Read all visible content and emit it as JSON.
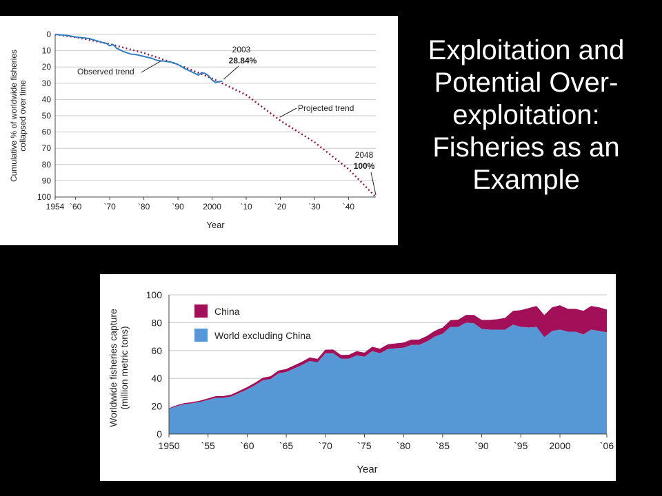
{
  "slide": {
    "title": "Exploitation and Potential Over-exploitation: Fisheries as an Example"
  },
  "colors": {
    "background": "#000000",
    "observed": "#2e7fc3",
    "projected": "#8b1a4a",
    "china": "#a3105a",
    "world": "#5697d6",
    "title_text": "#ffffff"
  },
  "chart_data": [
    {
      "type": "line",
      "title": "",
      "xlabel": "Year",
      "ylabel": "Cumulative % of worldwide fisheries collapsed over time",
      "ylabel_lines": [
        "Cumulative % of worldwide fisheries",
        "collapsed over time"
      ],
      "xlim": [
        1954,
        2048
      ],
      "ylim": [
        100,
        0
      ],
      "y_inverted": true,
      "grid": true,
      "x_ticks": [
        1954,
        1960,
        1970,
        1980,
        1990,
        2000,
        2010,
        2020,
        2030,
        2040
      ],
      "x_tick_labels": [
        "1954",
        "`60",
        "`70",
        "`80",
        "`90",
        "2000",
        "`10",
        "`20",
        "`30",
        "`40"
      ],
      "y_ticks": [
        0,
        10,
        20,
        30,
        40,
        50,
        60,
        70,
        80,
        90,
        100
      ],
      "y_tick_labels": [
        "0",
        "10",
        "20",
        "30",
        "40",
        "50",
        "60",
        "70",
        "80",
        "90",
        "100"
      ],
      "series": [
        {
          "name": "Observed trend",
          "style": "solid",
          "x": [
            1954,
            1956,
            1958,
            1960,
            1962,
            1964,
            1966,
            1968,
            1969,
            1970,
            1971,
            1972,
            1974,
            1976,
            1978,
            1980,
            1982,
            1984,
            1986,
            1988,
            1990,
            1992,
            1994,
            1996,
            1997,
            1998,
            1999,
            2000,
            2001,
            2002,
            2003
          ],
          "y": [
            0,
            0.3,
            0.8,
            1.6,
            2,
            2.5,
            3.8,
            5,
            5.5,
            7,
            6.2,
            8.5,
            10.5,
            12,
            12.5,
            13.5,
            14.5,
            16,
            16.5,
            17,
            18.5,
            21,
            23,
            25,
            23.5,
            24,
            25.5,
            28,
            29.5,
            29,
            28.84
          ]
        },
        {
          "name": "Projected trend",
          "style": "dotted",
          "x": [
            1954,
            1960,
            1970,
            1980,
            1990,
            2000,
            2010,
            2020,
            2030,
            2040,
            2048
          ],
          "y": [
            0,
            1.7,
            5.9,
            11.4,
            18.5,
            27,
            37.2,
            53,
            66.2,
            82.8,
            100
          ]
        }
      ],
      "annotations": [
        {
          "year_label": "2003",
          "value_label": "28.84%",
          "x": 2003,
          "y": 28.84
        },
        {
          "year_label": "2048",
          "value_label": "100%",
          "x": 2048,
          "y": 100
        }
      ]
    },
    {
      "type": "area",
      "title": "",
      "xlabel": "Year",
      "ylabel": "Worldwide fisheries capture (million metric tons)",
      "ylabel_lines": [
        "Worldwide fisheries capture",
        "(million metric tons)"
      ],
      "xlim": [
        1950,
        2006
      ],
      "ylim": [
        0,
        100
      ],
      "grid": true,
      "legend_position": "top-left",
      "x_ticks": [
        1950,
        1955,
        1960,
        1965,
        1970,
        1975,
        1980,
        1985,
        1990,
        1995,
        2000,
        2006
      ],
      "x_tick_labels": [
        "1950",
        "`55",
        "`60",
        "`65",
        "`70",
        "`75",
        "`80",
        "`85",
        "`90",
        "`95",
        "2000",
        "`06"
      ],
      "y_ticks": [
        0,
        20,
        40,
        60,
        80,
        100
      ],
      "y_tick_labels": [
        "0",
        "20",
        "40",
        "60",
        "80",
        "100"
      ],
      "x": [
        1950,
        1951,
        1952,
        1953,
        1954,
        1955,
        1956,
        1957,
        1958,
        1959,
        1960,
        1961,
        1962,
        1963,
        1964,
        1965,
        1966,
        1967,
        1968,
        1969,
        1970,
        1971,
        1972,
        1973,
        1974,
        1975,
        1976,
        1977,
        1978,
        1979,
        1980,
        1981,
        1982,
        1983,
        1984,
        1985,
        1986,
        1987,
        1988,
        1989,
        1990,
        1991,
        1992,
        1993,
        1994,
        1995,
        1996,
        1997,
        1998,
        1999,
        2000,
        2001,
        2002,
        2003,
        2004,
        2005,
        2006
      ],
      "series": [
        {
          "name": "World excluding China",
          "values": [
            18,
            20,
            21.5,
            22,
            23,
            24.5,
            26,
            26,
            27,
            29.5,
            32,
            35,
            38.5,
            39.5,
            43.5,
            44.5,
            47,
            49.5,
            52.5,
            51.5,
            58,
            58,
            54,
            54,
            56.5,
            55.5,
            59.5,
            58,
            61,
            61.5,
            62,
            64,
            64,
            66.5,
            70,
            72,
            77,
            77,
            80,
            79.5,
            75.5,
            75,
            75,
            75,
            78.5,
            77,
            76.5,
            77,
            69.5,
            74,
            75,
            73.5,
            73.5,
            71.5,
            75,
            74,
            73
          ]
        },
        {
          "name": "China",
          "values": [
            0.5,
            0.7,
            0.8,
            0.9,
            1,
            1.1,
            1.2,
            1.3,
            1.4,
            1.5,
            1.7,
            1.8,
            1.9,
            2,
            2.1,
            2.2,
            2.3,
            2.4,
            2.5,
            2.5,
            2.6,
            2.7,
            2.8,
            2.9,
            3,
            3,
            3.2,
            3.3,
            3.5,
            3.6,
            3.7,
            3.8,
            3.9,
            4,
            4.2,
            4.5,
            4.8,
            5.2,
            5.6,
            6,
            6.5,
            7,
            7.5,
            8.5,
            10,
            12,
            14,
            15,
            16,
            17,
            17.5,
            16.5,
            16.5,
            17,
            17,
            17,
            16.5
          ]
        }
      ]
    }
  ]
}
